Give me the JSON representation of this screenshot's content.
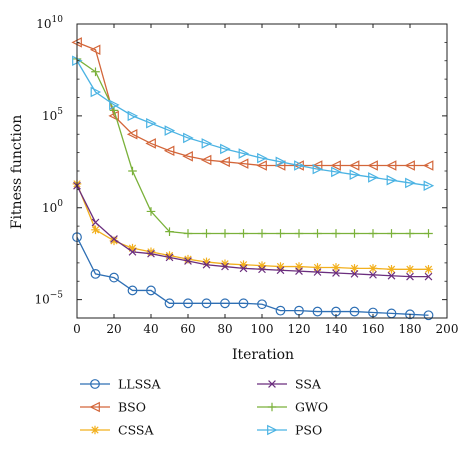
{
  "chart_data": {
    "type": "line",
    "title": "",
    "xlabel": "Iteration",
    "ylabel": "Fitness function",
    "xlim": [
      0,
      200
    ],
    "ylim_log10": [
      -6,
      10
    ],
    "y_scale": "log",
    "xticks": [
      0,
      20,
      40,
      60,
      80,
      100,
      120,
      140,
      160,
      180,
      200
    ],
    "yticks": [
      {
        "exp": 10,
        "label": "10",
        "sup": "10"
      },
      {
        "exp": 5,
        "label": "10",
        "sup": "5"
      },
      {
        "exp": 0,
        "label": "10",
        "sup": "0"
      },
      {
        "exp": -5,
        "label": "10",
        "sup": "−5"
      }
    ],
    "grid": false,
    "legend_position": "bottom",
    "x": [
      0,
      10,
      20,
      30,
      40,
      50,
      60,
      70,
      80,
      90,
      100,
      110,
      120,
      130,
      140,
      150,
      160,
      170,
      180,
      190
    ],
    "series": [
      {
        "name": "LLSSA",
        "color": "#2e6fb4",
        "marker": "circle",
        "log10_values": [
          -1.6,
          -3.6,
          -3.8,
          -4.5,
          -4.5,
          -5.2,
          -5.2,
          -5.2,
          -5.2,
          -5.2,
          -5.25,
          -5.6,
          -5.6,
          -5.65,
          -5.65,
          -5.65,
          -5.7,
          -5.75,
          -5.8,
          -5.85
        ]
      },
      {
        "name": "BSO",
        "color": "#d3663a",
        "marker": "triangle-left",
        "log10_values": [
          9.0,
          8.6,
          5.0,
          4.0,
          3.5,
          3.1,
          2.8,
          2.6,
          2.5,
          2.4,
          2.3,
          2.3,
          2.3,
          2.3,
          2.3,
          2.3,
          2.3,
          2.3,
          2.3,
          2.3
        ]
      },
      {
        "name": "CSSA",
        "color": "#f2b01e",
        "marker": "asterisk",
        "log10_values": [
          1.3,
          -1.2,
          -1.8,
          -2.2,
          -2.4,
          -2.6,
          -2.8,
          -2.95,
          -3.05,
          -3.1,
          -3.15,
          -3.2,
          -3.2,
          -3.25,
          -3.25,
          -3.3,
          -3.3,
          -3.35,
          -3.35,
          -3.35
        ]
      },
      {
        "name": "SSA",
        "color": "#6b2e7e",
        "marker": "x",
        "log10_values": [
          1.2,
          -0.8,
          -1.7,
          -2.4,
          -2.5,
          -2.7,
          -2.9,
          -3.1,
          -3.2,
          -3.3,
          -3.35,
          -3.4,
          -3.45,
          -3.5,
          -3.55,
          -3.6,
          -3.65,
          -3.7,
          -3.75,
          -3.75
        ]
      },
      {
        "name": "GWO",
        "color": "#7ab13a",
        "marker": "plus",
        "log10_values": [
          8.1,
          7.4,
          5.3,
          2.0,
          -0.2,
          -1.3,
          -1.4,
          -1.4,
          -1.4,
          -1.4,
          -1.4,
          -1.4,
          -1.4,
          -1.4,
          -1.4,
          -1.4,
          -1.4,
          -1.4,
          -1.4,
          -1.4
        ]
      },
      {
        "name": "PSO",
        "color": "#4bb3e3",
        "marker": "triangle-right",
        "log10_values": [
          8.0,
          6.3,
          5.6,
          5.0,
          4.6,
          4.2,
          3.8,
          3.5,
          3.2,
          2.95,
          2.7,
          2.5,
          2.3,
          2.1,
          1.95,
          1.8,
          1.65,
          1.5,
          1.35,
          1.2
        ]
      }
    ]
  }
}
